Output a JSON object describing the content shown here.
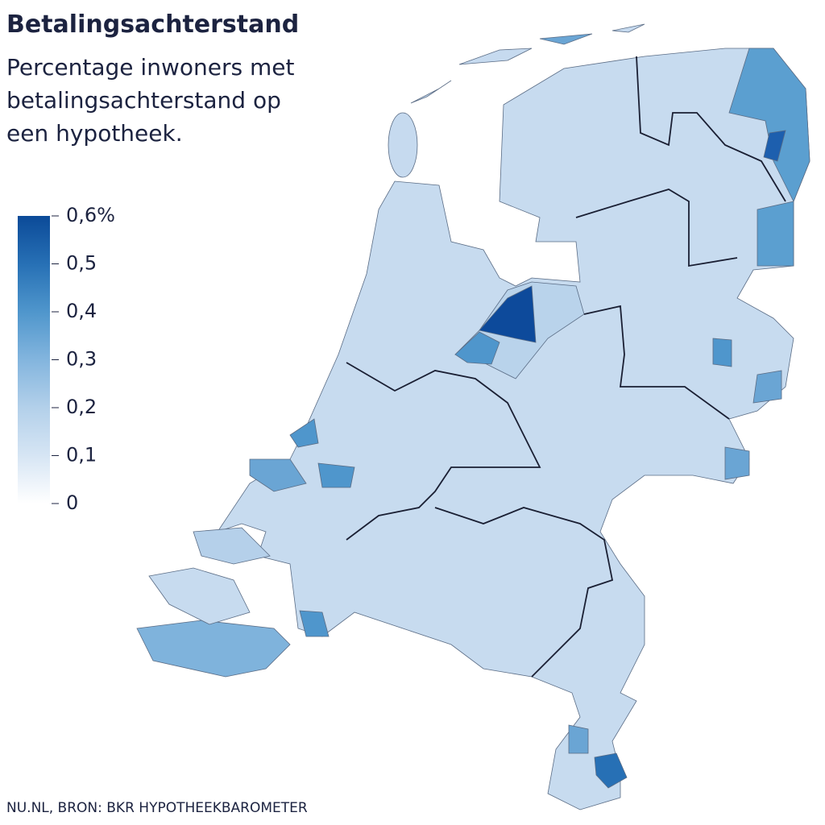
{
  "map": {
    "title": "Betalingsachterstand",
    "subtitle": [
      "Percentage inwoners met",
      "betalingsachterstand op",
      "een hypotheek."
    ],
    "legend": {
      "range": [
        0,
        0.6
      ],
      "colors": [
        "#ffffff",
        "#d6e5f4",
        "#b3d0ea",
        "#83b5de",
        "#4f96cc",
        "#2770b5",
        "#0b4a98"
      ],
      "ticks": [
        {
          "value": 0.6,
          "label": "0,6%"
        },
        {
          "value": 0.5,
          "label": "0,5"
        },
        {
          "value": 0.4,
          "label": "0,4"
        },
        {
          "value": 0.3,
          "label": "0,3"
        },
        {
          "value": 0.2,
          "label": "0,2"
        },
        {
          "value": 0.1,
          "label": "0,1"
        },
        0
      ]
    },
    "source": "NU.NL, BRON: BKR HYPOTHEEKBAROMETER"
  }
}
